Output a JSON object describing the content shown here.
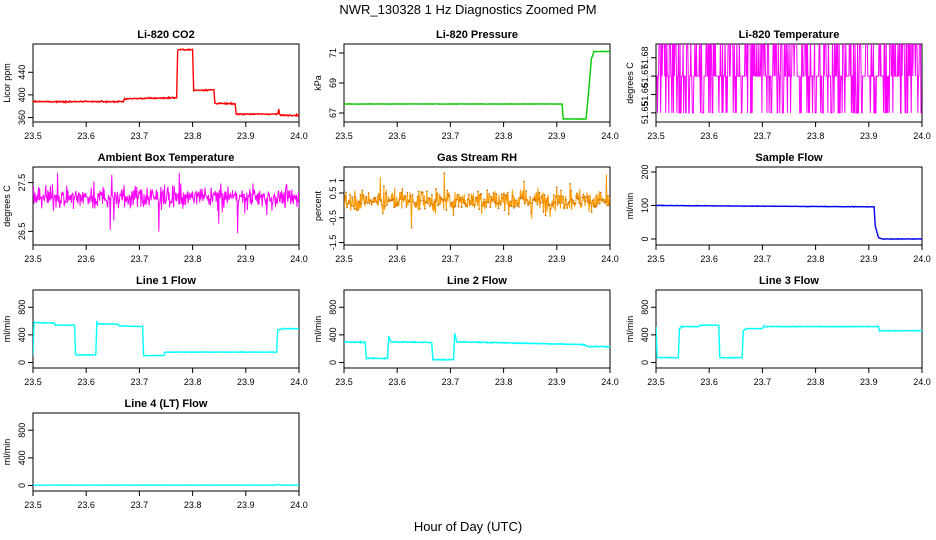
{
  "figure": {
    "title": "NWR_130328  1 Hz Diagnostics Zoomed PM",
    "xlabel": "Hour of Day (UTC)"
  },
  "chart_data": [
    {
      "type": "line",
      "title": "Li-820 CO2",
      "ylabel": "Licor ppm",
      "color": "#ff0000",
      "xlim": [
        23.5,
        24.0
      ],
      "ylim": [
        352,
        490
      ],
      "xticks": [
        23.5,
        23.6,
        23.7,
        23.8,
        23.9,
        24.0
      ],
      "yticks": [
        360,
        400,
        440
      ],
      "series": [
        {
          "name": "Li-820 CO2",
          "x": [
            23.5,
            23.67,
            23.672,
            23.77,
            23.772,
            23.8,
            23.802,
            23.84,
            23.842,
            23.88,
            23.882,
            23.96,
            23.962,
            23.963,
            23.965,
            24.0
          ],
          "y": [
            388,
            388,
            393,
            395,
            480,
            480,
            408,
            409,
            385,
            384,
            366,
            366,
            375,
            367,
            364,
            364
          ],
          "noise": 1.5
        }
      ]
    },
    {
      "type": "line",
      "title": "Li-820 Pressure",
      "ylabel": "kPa",
      "color": "#00cc00",
      "xlim": [
        23.5,
        24.0
      ],
      "ylim": [
        66.4,
        71.6
      ],
      "xticks": [
        23.5,
        23.6,
        23.7,
        23.8,
        23.9,
        24.0
      ],
      "yticks": [
        67,
        69,
        71
      ],
      "series": [
        {
          "name": "Li-820 Pressure",
          "x": [
            23.5,
            23.91,
            23.912,
            23.955,
            23.96,
            23.965,
            23.97,
            24.0
          ],
          "y": [
            67.6,
            67.6,
            66.6,
            66.6,
            68.5,
            70.6,
            71.1,
            71.1
          ],
          "noise": 0.02
        }
      ]
    },
    {
      "type": "line",
      "title": "Li-820 Temperature",
      "ylabel": "degrees C",
      "color": "#ff00ff",
      "xlim": [
        23.5,
        24.0
      ],
      "ylim": [
        51.645,
        51.6875
      ],
      "xticks": [
        23.5,
        23.6,
        23.7,
        23.8,
        23.9,
        24.0
      ],
      "yticks": [
        51.65,
        51.66,
        51.67,
        51.68
      ],
      "series": [
        {
          "name": "Li-820 Temperature",
          "levels": [
            51.65,
            51.67,
            51.69
          ],
          "pattern": "quantized-toggle"
        }
      ]
    },
    {
      "type": "line",
      "title": "Ambient Box Temperature",
      "ylabel": "degrees C",
      "color": "#ff00ff",
      "xlim": [
        23.5,
        24.0
      ],
      "ylim": [
        26.22,
        27.82
      ],
      "xticks": [
        23.5,
        23.6,
        23.7,
        23.8,
        23.9,
        24.0
      ],
      "yticks": [
        26.5,
        27.5
      ],
      "series": [
        {
          "name": "Ambient Box Temperature",
          "mean": 27.2,
          "spread": 0.15,
          "range": [
            26.3,
            27.7
          ],
          "pattern": "noise"
        }
      ]
    },
    {
      "type": "line",
      "title": "Gas Stream RH",
      "ylabel": "percent",
      "color": "#ff9900",
      "xlim": [
        23.5,
        24.0
      ],
      "ylim": [
        -1.6,
        1.55
      ],
      "xticks": [
        23.5,
        23.6,
        23.7,
        23.8,
        23.9,
        24.0
      ],
      "yticks": [
        -1.5,
        -0.5,
        0.5,
        1.0
      ],
      "series": [
        {
          "name": "Gas Stream RH",
          "mean": 0.2,
          "spread": 0.3,
          "range": [
            -1.4,
            1.3
          ],
          "pattern": "noise"
        }
      ]
    },
    {
      "type": "line",
      "title": "Sample Flow",
      "ylabel": "ml/min",
      "color": "#0000ee",
      "xlim": [
        23.5,
        24.0
      ],
      "ylim": [
        -18,
        215
      ],
      "xticks": [
        23.5,
        23.6,
        23.7,
        23.8,
        23.9,
        24.0
      ],
      "yticks": [
        0,
        100,
        200
      ],
      "series": [
        {
          "name": "Sample Flow",
          "x": [
            23.5,
            23.8,
            23.91,
            23.912,
            23.918,
            23.925,
            24.0
          ],
          "y": [
            100,
            97,
            96,
            40,
            5,
            0,
            0
          ],
          "noise": 1
        }
      ]
    },
    {
      "type": "line",
      "title": "Line 1 Flow",
      "ylabel": "ml/min",
      "color": "#00ffff",
      "xlim": [
        23.5,
        24.0
      ],
      "ylim": [
        -80,
        1050
      ],
      "xticks": [
        23.5,
        23.6,
        23.7,
        23.8,
        23.9,
        24.0
      ],
      "yticks": [
        0,
        400,
        800
      ],
      "series": [
        {
          "name": "Line 1 Flow",
          "x": [
            23.5,
            23.502,
            23.54,
            23.542,
            23.578,
            23.58,
            23.618,
            23.62,
            23.622,
            23.66,
            23.662,
            23.706,
            23.708,
            23.746,
            23.748,
            23.958,
            23.96,
            23.97,
            24.0
          ],
          "y": [
            100,
            580,
            570,
            540,
            540,
            110,
            110,
            590,
            560,
            555,
            530,
            520,
            100,
            100,
            150,
            150,
            470,
            490,
            490
          ],
          "noise": 6
        }
      ]
    },
    {
      "type": "line",
      "title": "Line 2 Flow",
      "ylabel": "ml/min",
      "color": "#00ffff",
      "xlim": [
        23.5,
        24.0
      ],
      "ylim": [
        -80,
        1050
      ],
      "xticks": [
        23.5,
        23.6,
        23.7,
        23.8,
        23.9,
        24.0
      ],
      "yticks": [
        0,
        400,
        800
      ],
      "series": [
        {
          "name": "Line 2 Flow",
          "x": [
            23.5,
            23.54,
            23.542,
            23.582,
            23.584,
            23.588,
            23.665,
            23.667,
            23.706,
            23.708,
            23.712,
            23.95,
            23.96,
            24.0
          ],
          "y": [
            300,
            290,
            60,
            60,
            380,
            300,
            290,
            40,
            40,
            420,
            300,
            260,
            230,
            230
          ],
          "noise": 10
        }
      ]
    },
    {
      "type": "line",
      "title": "Line 3 Flow",
      "ylabel": "ml/min",
      "color": "#00ffff",
      "xlim": [
        23.5,
        24.0
      ],
      "ylim": [
        -80,
        1050
      ],
      "xticks": [
        23.5,
        23.6,
        23.7,
        23.8,
        23.9,
        24.0
      ],
      "yticks": [
        0,
        400,
        800
      ],
      "series": [
        {
          "name": "Line 3 Flow",
          "x": [
            23.5,
            23.502,
            23.504,
            23.542,
            23.544,
            23.548,
            23.58,
            23.582,
            23.618,
            23.62,
            23.662,
            23.664,
            23.67,
            23.7,
            23.702,
            23.918,
            23.92,
            23.95,
            24.0
          ],
          "y": [
            520,
            70,
            70,
            70,
            480,
            520,
            520,
            540,
            540,
            70,
            70,
            460,
            490,
            490,
            520,
            520,
            460,
            460,
            460
          ],
          "noise": 7
        }
      ]
    },
    {
      "type": "line",
      "title": "Line 4 (LT) Flow",
      "ylabel": "ml/min",
      "color": "#00ffff",
      "xlim": [
        23.5,
        24.0
      ],
      "ylim": [
        -80,
        1050
      ],
      "xticks": [
        23.5,
        23.6,
        23.7,
        23.8,
        23.9,
        24.0
      ],
      "yticks": [
        0,
        400,
        800
      ],
      "series": [
        {
          "name": "Line 4 (LT) Flow",
          "x": [
            23.5,
            23.955,
            23.96,
            23.965,
            24.0
          ],
          "y": [
            5,
            5,
            15,
            5,
            5
          ],
          "noise": 2
        }
      ]
    }
  ]
}
